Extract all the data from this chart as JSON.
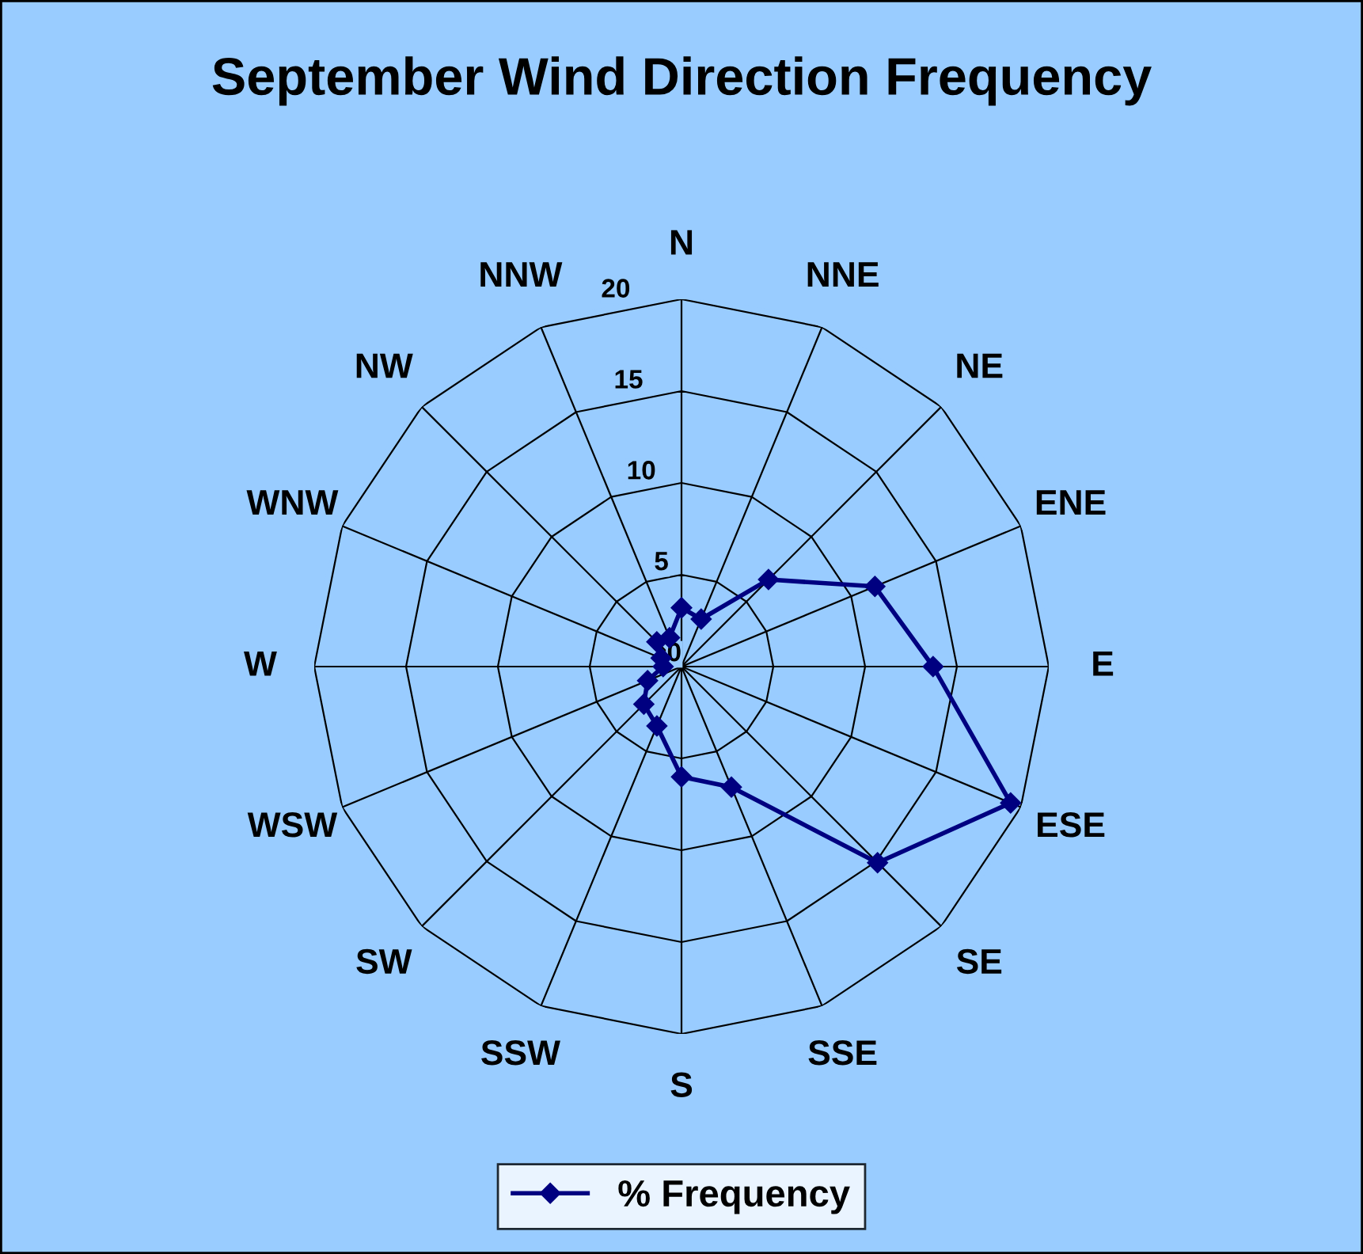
{
  "chart_data": {
    "type": "radar",
    "title": "September Wind Direction Frequency",
    "categories": [
      "N",
      "NNE",
      "NE",
      "ENE",
      "E",
      "ESE",
      "SE",
      "SSE",
      "S",
      "SSW",
      "SW",
      "WSW",
      "W",
      "WNW",
      "NW",
      "NNW"
    ],
    "series": [
      {
        "name": "% Frequency",
        "color": "#000080",
        "values": [
          3.2,
          2.8,
          6.7,
          11.4,
          13.7,
          19.4,
          15.1,
          7.1,
          6.0,
          3.5,
          2.9,
          2.0,
          1.0,
          1.2,
          1.9,
          1.7
        ]
      }
    ],
    "ylim": [
      0,
      20
    ],
    "yticks": [
      0,
      5,
      10,
      15,
      20
    ],
    "grid": true,
    "legend": "bottom",
    "marker": "diamond",
    "line_style": "solid"
  }
}
